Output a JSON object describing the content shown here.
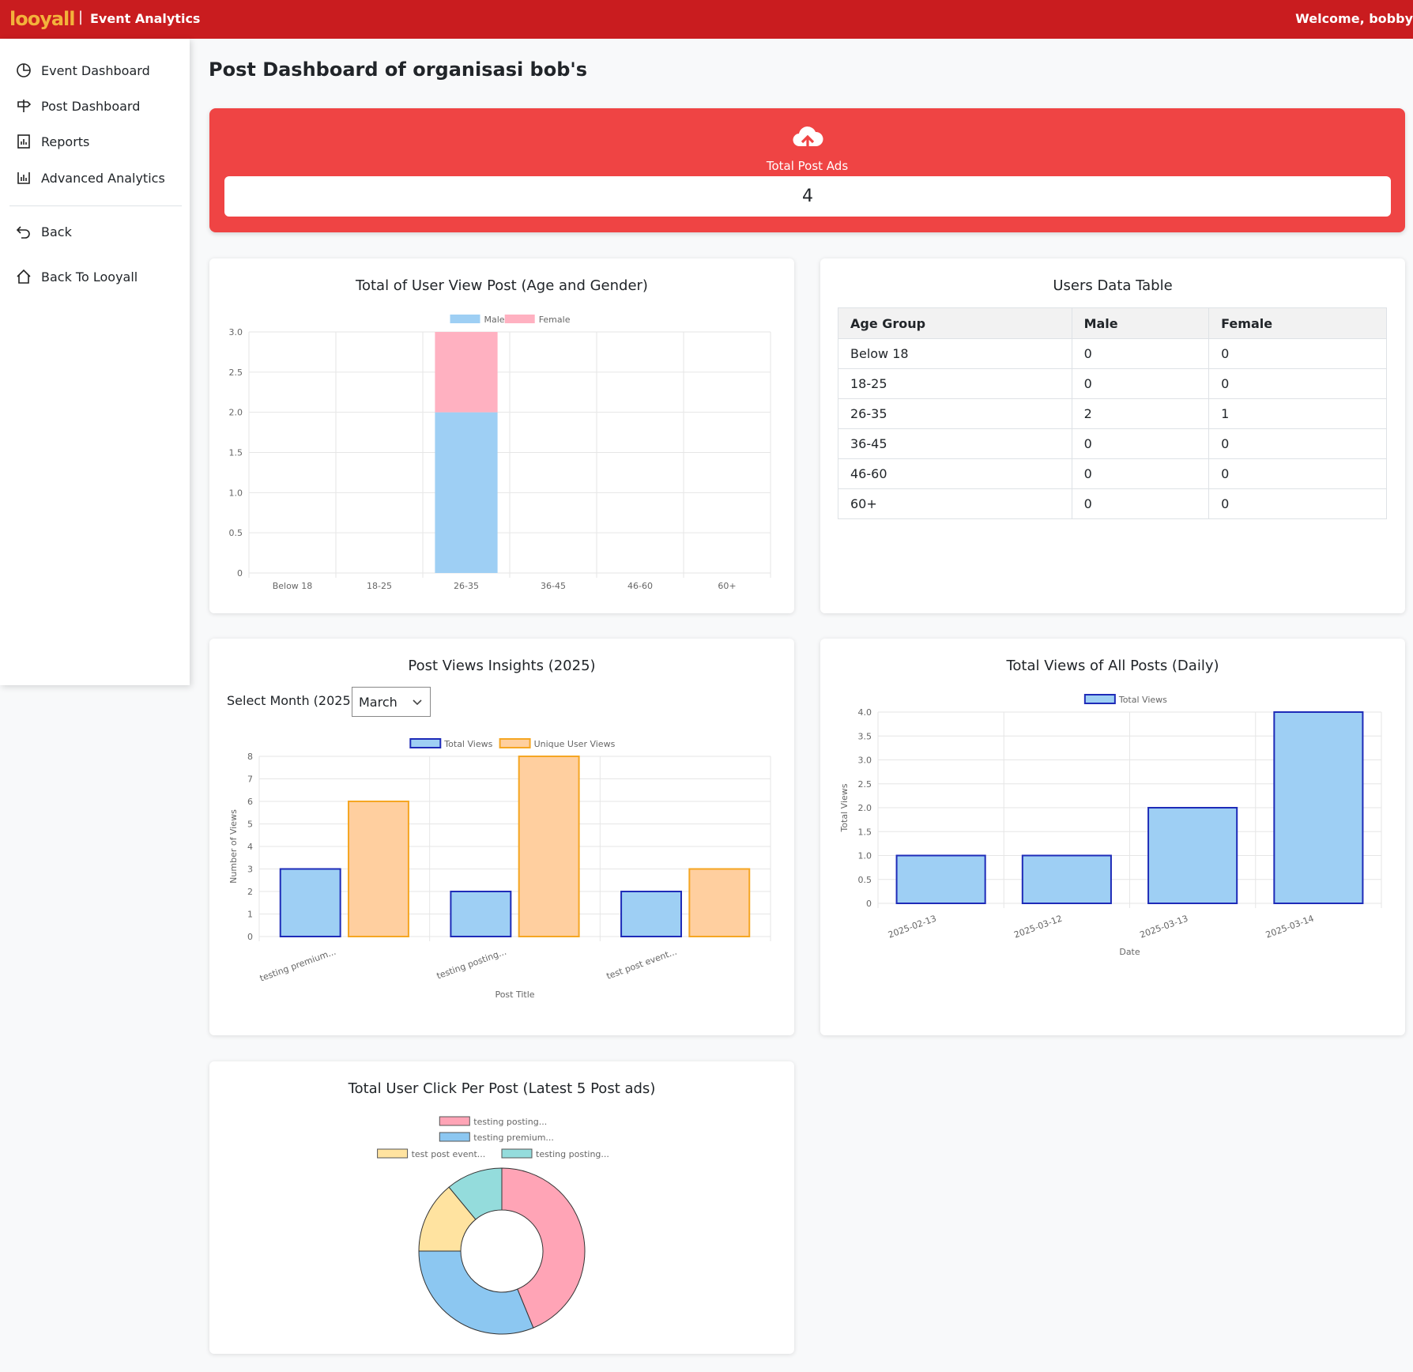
{
  "header": {
    "logo_text": "looyall",
    "separator": "|",
    "app_title": "Event Analytics",
    "welcome": "Welcome, bobby"
  },
  "sidebar": {
    "items": [
      {
        "label": "Event Dashboard",
        "icon": "pie-chart-icon"
      },
      {
        "label": "Post Dashboard",
        "icon": "signpost-icon"
      },
      {
        "label": "Reports",
        "icon": "report-icon"
      },
      {
        "label": "Advanced Analytics",
        "icon": "bar-chart-icon"
      },
      {
        "label": "Back",
        "icon": "back-arrow-icon"
      },
      {
        "label": "Back To Looyall",
        "icon": "home-icon"
      }
    ]
  },
  "page": {
    "title": "Post Dashboard of organisasi bob's"
  },
  "summary": {
    "label": "Total Post Ads",
    "value": "4",
    "icon": "cloud-upload-icon",
    "color": "#ef4444"
  },
  "users_table": {
    "title": "Users Data Table",
    "headers": [
      "Age Group",
      "Male",
      "Female"
    ],
    "rows": [
      [
        "Below 18",
        "0",
        "0"
      ],
      [
        "18-25",
        "0",
        "0"
      ],
      [
        "26-35",
        "2",
        "1"
      ],
      [
        "36-45",
        "0",
        "0"
      ],
      [
        "46-60",
        "0",
        "0"
      ],
      [
        "60+",
        "0",
        "0"
      ]
    ]
  },
  "month_select": {
    "label": "Select Month (2025):",
    "value": "March"
  },
  "chart_data": [
    {
      "id": "age-gender",
      "type": "bar",
      "stacked": true,
      "title": "Total of User View Post (Age and Gender)",
      "categories": [
        "Below 18",
        "18-25",
        "26-35",
        "36-45",
        "46-60",
        "60+"
      ],
      "series": [
        {
          "name": "Male",
          "values": [
            0,
            0,
            2,
            0,
            0,
            0
          ],
          "color": "#9ecff4"
        },
        {
          "name": "Female",
          "values": [
            0,
            0,
            1,
            0,
            0,
            0
          ],
          "color": "#ffb1c1"
        }
      ],
      "ylim": [
        0,
        3
      ],
      "yticks": [
        "0",
        "0.5",
        "1.0",
        "1.5",
        "2.0",
        "2.5",
        "3.0"
      ],
      "legend": "top",
      "grid": true
    },
    {
      "id": "post-views",
      "type": "bar",
      "title": "Post Views Insights (2025)",
      "categories": [
        "testing premium...",
        "testing posting...",
        "test post event..."
      ],
      "series": [
        {
          "name": "Total Views",
          "values": [
            3,
            2,
            2
          ],
          "color": "#9ecff4",
          "border": "#1e2bb8"
        },
        {
          "name": "Unique User Views",
          "values": [
            6,
            8,
            3
          ],
          "color": "#ffcf9f",
          "border": "#f5a623"
        }
      ],
      "xlabel": "Post Title",
      "ylabel": "Number of Views",
      "ylim": [
        0,
        8
      ],
      "yticks": [
        "0",
        "1",
        "2",
        "3",
        "4",
        "5",
        "6",
        "7",
        "8"
      ],
      "legend": "top",
      "grid": true
    },
    {
      "id": "daily-views",
      "type": "bar",
      "title": "Total Views of All Posts (Daily)",
      "categories": [
        "2025-02-13",
        "2025-03-12",
        "2025-03-13",
        "2025-03-14"
      ],
      "series": [
        {
          "name": "Total Views",
          "values": [
            1,
            1,
            2,
            4
          ],
          "color": "#9ecff4",
          "border": "#1e2bb8"
        }
      ],
      "xlabel": "Date",
      "ylabel": "Total Views",
      "ylim": [
        0,
        4
      ],
      "yticks": [
        "0",
        "0.5",
        "1.0",
        "1.5",
        "2.0",
        "2.5",
        "3.0",
        "3.5",
        "4.0"
      ],
      "legend": "top",
      "grid": true
    },
    {
      "id": "clicks",
      "type": "pie",
      "donut": true,
      "title": "Total User Click Per Post (Latest 5 Post ads)",
      "labels": [
        "testing posting...",
        "testing premium...",
        "test post event...",
        "testing posting..."
      ],
      "values": [
        0.438,
        0.312,
        0.14,
        0.11
      ],
      "colors": [
        "#ffa4b6",
        "#8cc7f1",
        "#ffe3a0",
        "#94dcdc"
      ],
      "legend": "top"
    }
  ]
}
